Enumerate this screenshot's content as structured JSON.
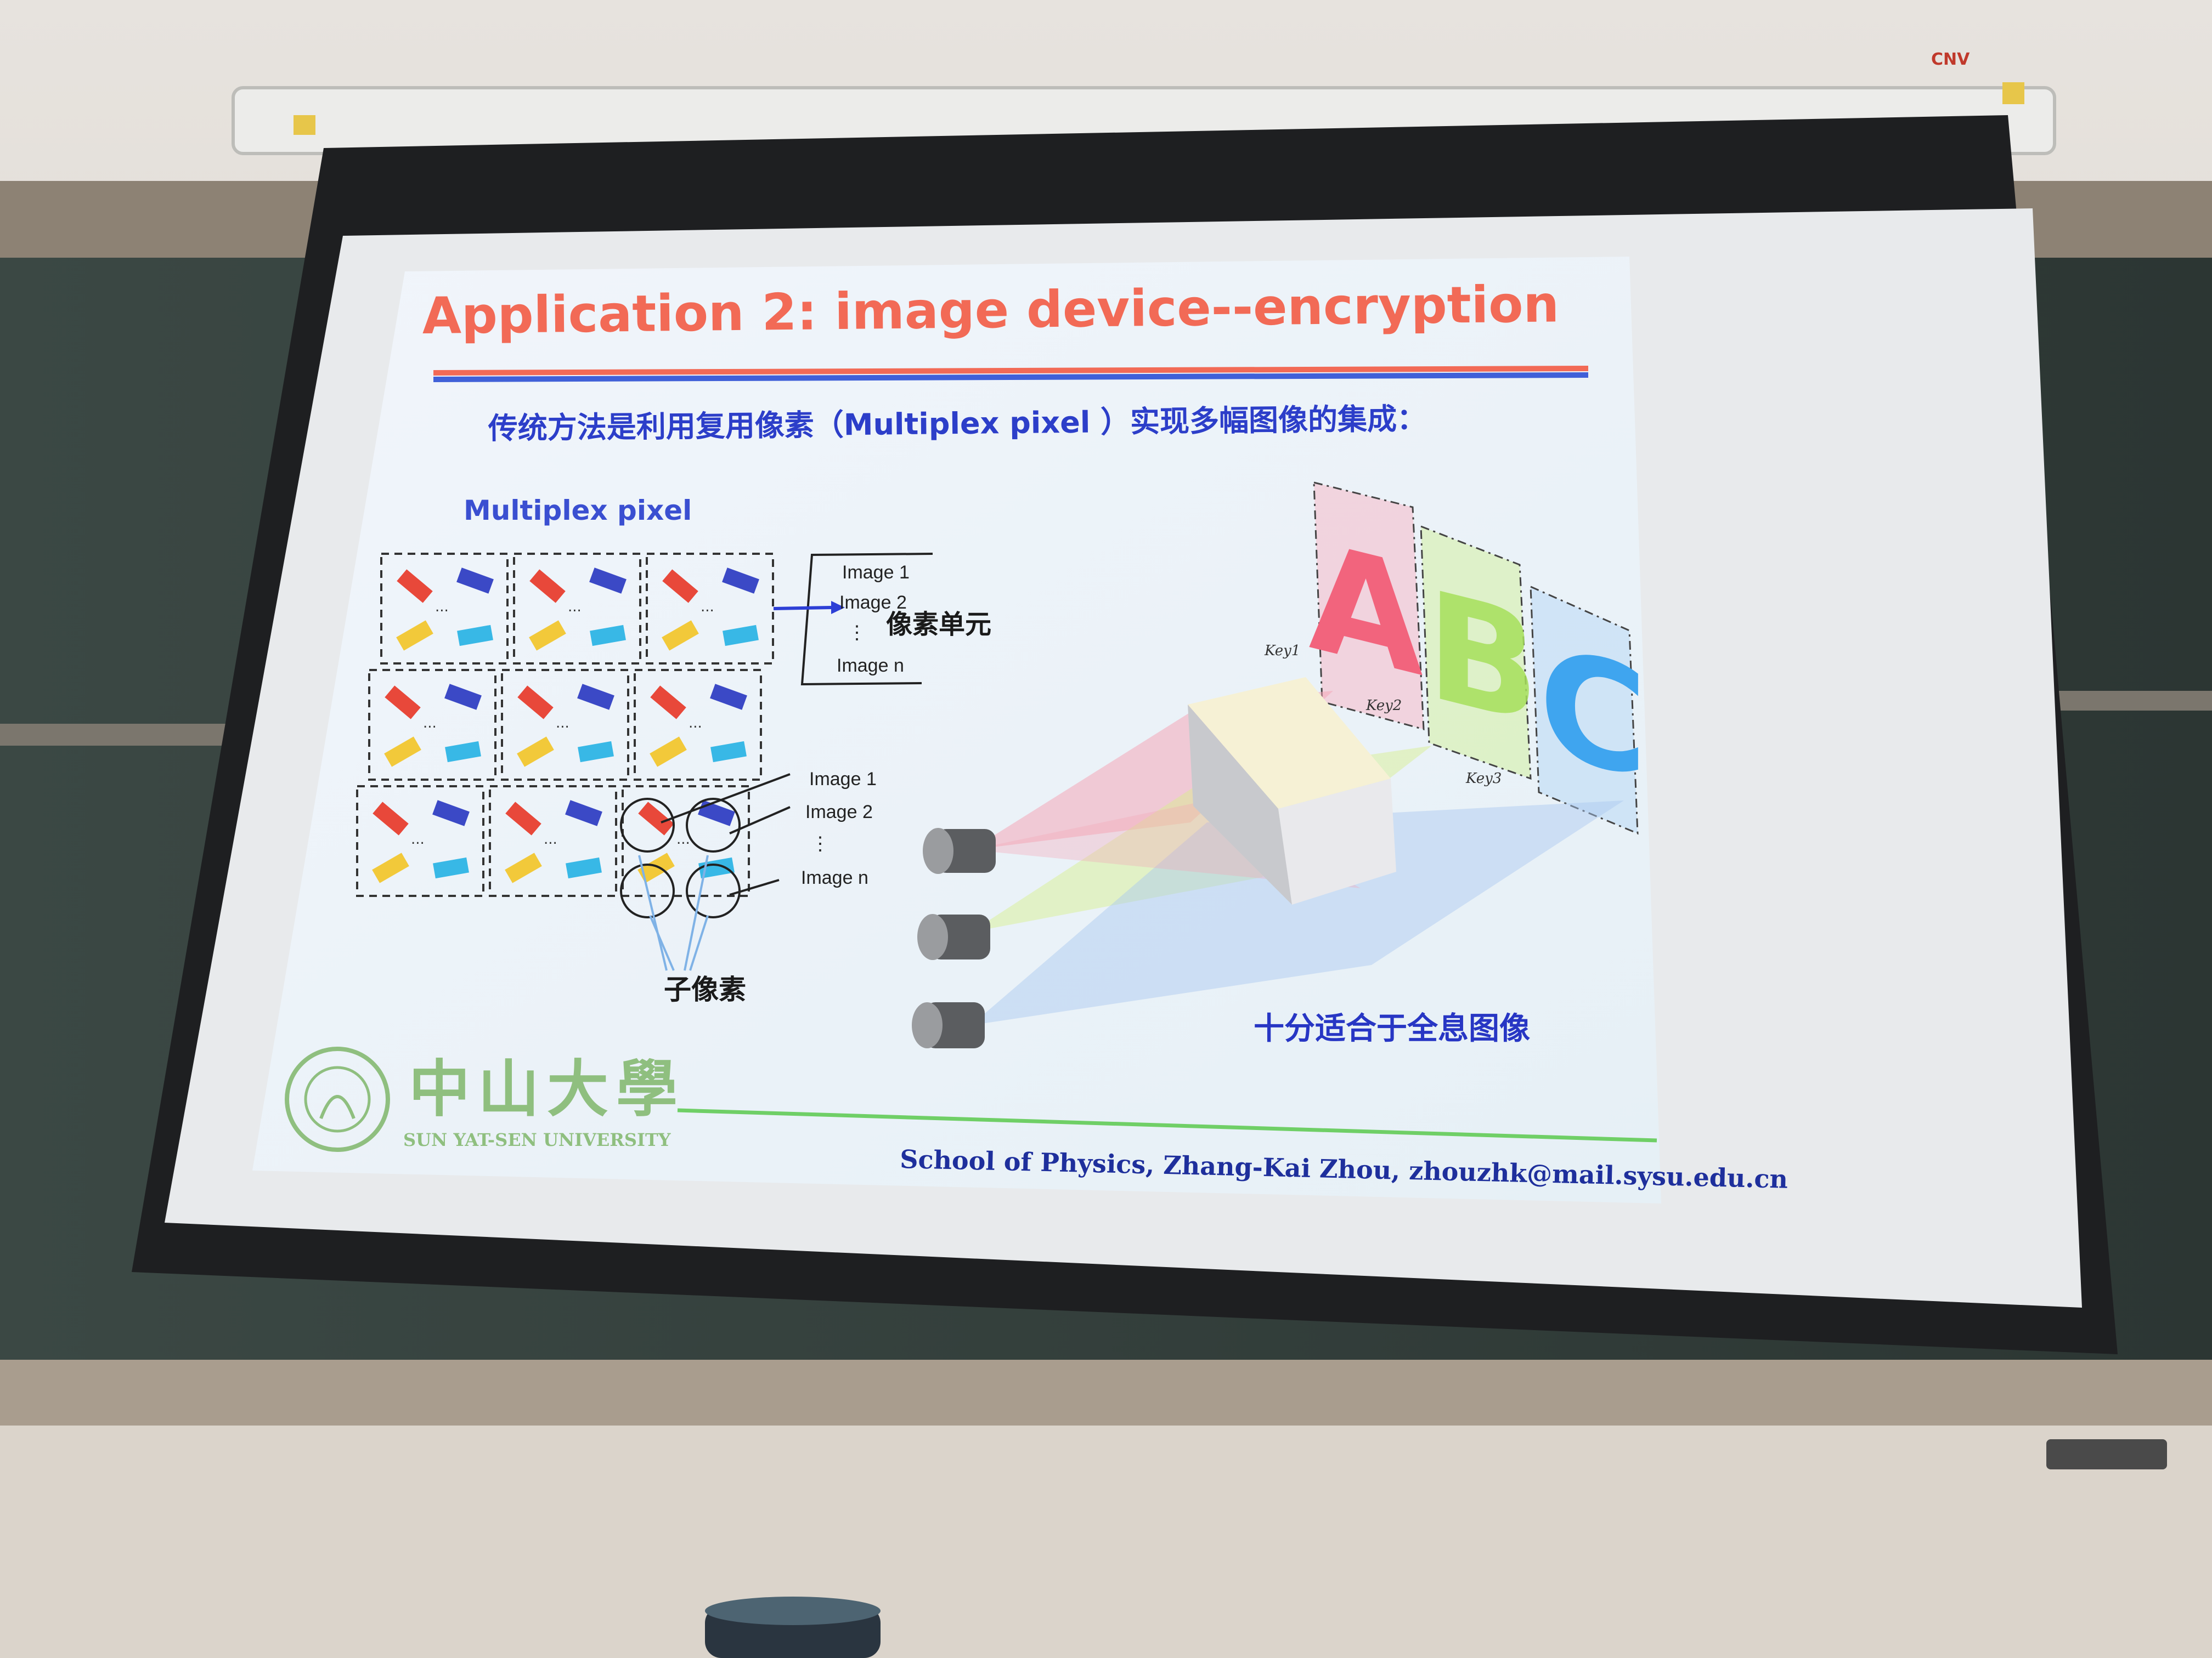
{
  "projector_brand": "CNV",
  "slide": {
    "title": "Application 2: image device--encryption",
    "subtitle": "传统方法是利用复用像素（Multiplex pixel ）实现多幅图像的集成：",
    "left_panel": {
      "heading": "Multiplex pixel",
      "image_list_top": [
        "Image 1",
        "Image 2",
        "⋮",
        "Image n"
      ],
      "pixel_unit_label": "像素单元",
      "image_list_bottom": [
        "Image 1",
        "Image 2",
        "⋮",
        "Image n"
      ],
      "subpixel_label": "子像素",
      "dots": "..."
    },
    "right_panel": {
      "letters": [
        "A",
        "B",
        "C"
      ],
      "keys": [
        "Key1",
        "Key2",
        "Key3"
      ],
      "caption": "十分适合于全息图像"
    },
    "university": {
      "name_cn": "中山大學",
      "name_en": "SUN YAT-SEN UNIVERSITY",
      "seal_text": "SUN YAT-SEN UNIVERSITY"
    },
    "footer": "School of Physics, Zhang-Kai Zhou, zhouzhk@mail.sysu.edu.cn"
  },
  "colors": {
    "title_red": "#f26a56",
    "accent_blue": "#4057d8",
    "bar_red": "#e8483a",
    "bar_blue": "#3b49c6",
    "bar_yellow": "#f2c93a",
    "bar_cyan": "#38b8e6",
    "green_line": "#6fcf66",
    "footer_navy": "#1e2f9c"
  }
}
